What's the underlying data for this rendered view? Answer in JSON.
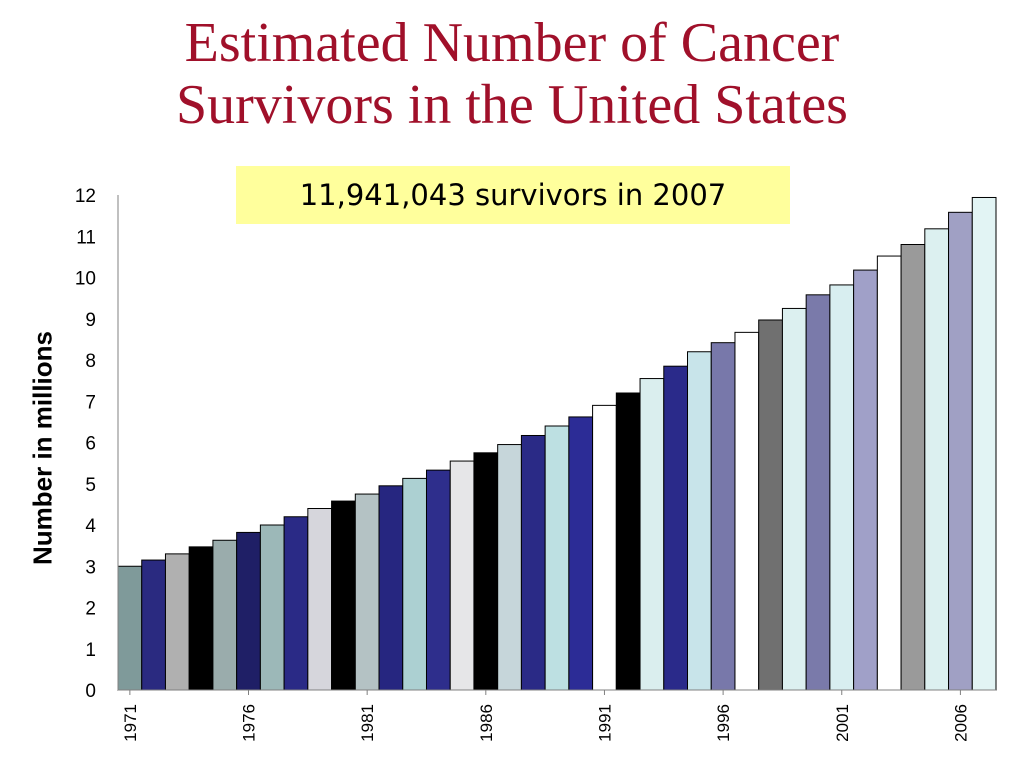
{
  "slide": {
    "title_line1": "Estimated Number of Cancer",
    "title_line2": "Survivors in the United States",
    "callout": "11,941,043 survivors in 2007"
  },
  "chart_data": {
    "type": "bar",
    "ylabel": "Number in millions",
    "ylim": [
      0,
      12
    ],
    "yticks": [
      0,
      1,
      2,
      3,
      4,
      5,
      6,
      7,
      8,
      9,
      10,
      11,
      12
    ],
    "grid": false,
    "categories": [
      "1971",
      "1972",
      "1973",
      "1974",
      "1975",
      "1976",
      "1977",
      "1978",
      "1979",
      "1980",
      "1981",
      "1982",
      "1983",
      "1984",
      "1985",
      "1986",
      "1987",
      "1988",
      "1989",
      "1990",
      "1991",
      "1992",
      "1993",
      "1994",
      "1995",
      "1996",
      "1997",
      "1998",
      "1999",
      "2000",
      "2001",
      "2002",
      "2003",
      "2004",
      "2005",
      "2006",
      "2007"
    ],
    "values": [
      3.0,
      3.15,
      3.3,
      3.47,
      3.63,
      3.82,
      4.0,
      4.2,
      4.4,
      4.58,
      4.75,
      4.95,
      5.13,
      5.33,
      5.55,
      5.75,
      5.95,
      6.17,
      6.4,
      6.62,
      6.9,
      7.2,
      7.55,
      7.85,
      8.2,
      8.42,
      8.67,
      8.97,
      9.25,
      9.58,
      9.82,
      10.18,
      10.52,
      10.8,
      11.18,
      11.58,
      11.94
    ],
    "xtick_labels": [
      "1971",
      "1976",
      "1981",
      "1986",
      "1991",
      "1996",
      "2001",
      "2006"
    ],
    "bar_colors": [
      "#7f9a9a",
      "#2a2a80",
      "#b0b0b0",
      "#000000",
      "#9aacac",
      "#1f1f66",
      "#9cb8b8",
      "#2a2a86",
      "#d6d6dc",
      "#000000",
      "#b4c2c4",
      "#262680",
      "#acd0d2",
      "#2e2e8c",
      "#e6e6e8",
      "#000000",
      "#c6d6da",
      "#2a2a86",
      "#bde0e2",
      "#2c2c96",
      "#ffffff",
      "#000000",
      "#daeeee",
      "#2a2a8a",
      "#c8e4ea",
      "#7878aa",
      "#ffffff",
      "#707070",
      "#dcf0f0",
      "#7a7aaa",
      "#d8eef0",
      "#a0a0c8",
      "#ffffff",
      "#9a9a9a",
      "#dcf0f0",
      "#a0a0c4",
      "#e2f4f4"
    ]
  }
}
